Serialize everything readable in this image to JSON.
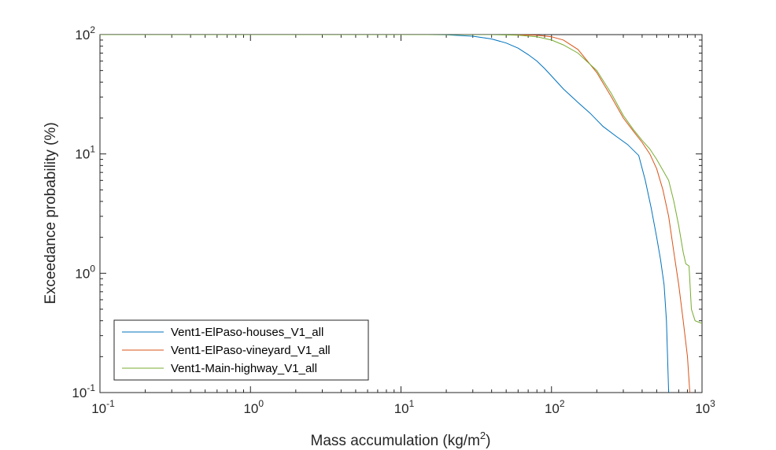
{
  "chart_data": {
    "type": "line",
    "xlabel": "Mass accumulation (kg/m",
    "xlabel_sup": "2",
    "xlabel_suffix": ")",
    "ylabel": "Exceedance probability (%)",
    "x_scale": "log",
    "y_scale": "log",
    "xlim": [
      0.1,
      1000
    ],
    "ylim": [
      0.1,
      100
    ],
    "x_ticks": [
      {
        "base": "10",
        "exp": "-1",
        "value": 0.1
      },
      {
        "base": "10",
        "exp": "0",
        "value": 1
      },
      {
        "base": "10",
        "exp": "1",
        "value": 10
      },
      {
        "base": "10",
        "exp": "2",
        "value": 100
      },
      {
        "base": "10",
        "exp": "3",
        "value": 1000
      }
    ],
    "y_ticks": [
      {
        "base": "10",
        "exp": "-1",
        "value": 0.1
      },
      {
        "base": "10",
        "exp": "0",
        "value": 1
      },
      {
        "base": "10",
        "exp": "1",
        "value": 10
      },
      {
        "base": "10",
        "exp": "2",
        "value": 100
      }
    ],
    "grid": false,
    "legend_position": "bottom-left",
    "series": [
      {
        "name": "Vent1-ElPaso-houses_V1_all",
        "color": "#0072BD",
        "points": [
          [
            0.1,
            100
          ],
          [
            15,
            100
          ],
          [
            20,
            99.5
          ],
          [
            30,
            97
          ],
          [
            40,
            92
          ],
          [
            50,
            85
          ],
          [
            60,
            77
          ],
          [
            70,
            68
          ],
          [
            80,
            60
          ],
          [
            90,
            52
          ],
          [
            100,
            45
          ],
          [
            120,
            35
          ],
          [
            150,
            27
          ],
          [
            180,
            22
          ],
          [
            220,
            17
          ],
          [
            270,
            14
          ],
          [
            320,
            12
          ],
          [
            380,
            9.7
          ],
          [
            420,
            6
          ],
          [
            460,
            3.5
          ],
          [
            500,
            2
          ],
          [
            530,
            1.3
          ],
          [
            560,
            0.8
          ],
          [
            580,
            0.4
          ],
          [
            600,
            0.1
          ]
        ]
      },
      {
        "name": "Vent1-ElPaso-vineyard_V1_all",
        "color": "#D95319",
        "points": [
          [
            0.1,
            100
          ],
          [
            50,
            100
          ],
          [
            80,
            99
          ],
          [
            100,
            96
          ],
          [
            120,
            90
          ],
          [
            150,
            75
          ],
          [
            200,
            48
          ],
          [
            250,
            30
          ],
          [
            300,
            20
          ],
          [
            350,
            15.5
          ],
          [
            400,
            12.5
          ],
          [
            450,
            10
          ],
          [
            500,
            7.5
          ],
          [
            550,
            5
          ],
          [
            600,
            3
          ],
          [
            650,
            1.5
          ],
          [
            700,
            0.8
          ],
          [
            750,
            0.4
          ],
          [
            800,
            0.2
          ],
          [
            830,
            0.1
          ]
        ]
      },
      {
        "name": "Vent1-Main-highway_V1_all",
        "color": "#77AC30",
        "points": [
          [
            0.1,
            100
          ],
          [
            40,
            100
          ],
          [
            60,
            99
          ],
          [
            80,
            96
          ],
          [
            100,
            90
          ],
          [
            120,
            82
          ],
          [
            150,
            70
          ],
          [
            200,
            50
          ],
          [
            250,
            32
          ],
          [
            300,
            21
          ],
          [
            350,
            16
          ],
          [
            400,
            13
          ],
          [
            450,
            11
          ],
          [
            500,
            9
          ],
          [
            600,
            6
          ],
          [
            650,
            4
          ],
          [
            700,
            2.5
          ],
          [
            750,
            1.5
          ],
          [
            780,
            1.2
          ],
          [
            820,
            1.15
          ],
          [
            850,
            0.5
          ],
          [
            900,
            0.4
          ],
          [
            1000,
            0.38
          ]
        ]
      }
    ]
  }
}
